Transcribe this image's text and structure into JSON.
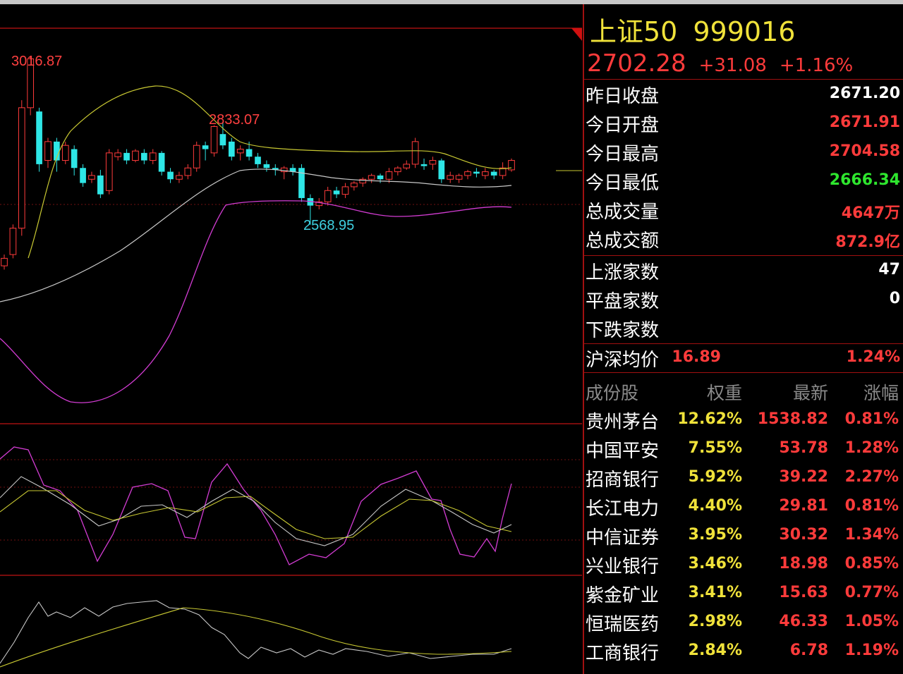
{
  "index": {
    "name": "上证50",
    "code": "999016",
    "price": "2702.28",
    "change": "+31.08",
    "change_pct": "+1.16%"
  },
  "stats": [
    {
      "label": "昨日收盘",
      "value": "2671.20",
      "color": "#ffffff"
    },
    {
      "label": "今日开盘",
      "value": "2671.91",
      "color": "#ff3b3b"
    },
    {
      "label": "今日最高",
      "value": "2704.58",
      "color": "#ff3b3b"
    },
    {
      "label": "今日最低",
      "value": "2666.34",
      "color": "#2ee62e"
    },
    {
      "label": "总成交量",
      "value": "4647万",
      "color": "#ff3b3b"
    },
    {
      "label": "总成交额",
      "value": "872.9亿",
      "color": "#ff3b3b"
    }
  ],
  "breadth": [
    {
      "label": "上涨家数",
      "value": "47",
      "color": "#ffffff"
    },
    {
      "label": "平盘家数",
      "value": "0",
      "color": "#ffffff"
    },
    {
      "label": "下跌家数",
      "value": "",
      "color": "#ff3b3b"
    }
  ],
  "avg_price": {
    "label": "沪深均价",
    "value": "16.89",
    "pct": "1.24%"
  },
  "constituents": {
    "headers": [
      "成份股",
      "权重",
      "最新",
      "涨幅"
    ],
    "rows": [
      {
        "name": "贵州茅台",
        "weight": "12.62%",
        "price": "1538.82",
        "pct": "0.81%"
      },
      {
        "name": "中国平安",
        "weight": "7.55%",
        "price": "53.78",
        "pct": "1.28%"
      },
      {
        "name": "招商银行",
        "weight": "5.92%",
        "price": "39.22",
        "pct": "2.27%"
      },
      {
        "name": "长江电力",
        "weight": "4.40%",
        "price": "29.81",
        "pct": "0.81%"
      },
      {
        "name": "中信证券",
        "weight": "3.95%",
        "price": "30.32",
        "pct": "1.34%"
      },
      {
        "name": "兴业银行",
        "weight": "3.46%",
        "price": "18.98",
        "pct": "0.85%"
      },
      {
        "name": "紫金矿业",
        "weight": "3.41%",
        "price": "15.63",
        "pct": "0.77%"
      },
      {
        "name": "恒瑞医药",
        "weight": "2.98%",
        "price": "46.33",
        "pct": "1.05%"
      },
      {
        "name": "工商银行",
        "weight": "2.84%",
        "price": "6.78",
        "pct": "1.19%"
      }
    ]
  },
  "chart_data": {
    "type": "candlestick",
    "annotations": {
      "high_label": "3016.87",
      "local_high_label": "2833.07",
      "low_label": "2568.95"
    },
    "y_range": [
      2050,
      3080
    ],
    "candles": [
      [
        2460,
        2480,
        2450,
        2490
      ],
      [
        2490,
        2560,
        2480,
        2570
      ],
      [
        2560,
        2880,
        2540,
        2900
      ],
      [
        2880,
        3010,
        2860,
        3016.87
      ],
      [
        2870,
        2730,
        2710,
        2880
      ],
      [
        2740,
        2790,
        2720,
        2800
      ],
      [
        2790,
        2740,
        2710,
        2800
      ],
      [
        2740,
        2780,
        2730,
        2790
      ],
      [
        2770,
        2720,
        2700,
        2780
      ],
      [
        2720,
        2680,
        2670,
        2730
      ],
      [
        2690,
        2700,
        2680,
        2710
      ],
      [
        2700,
        2650,
        2640,
        2715
      ],
      [
        2660,
        2760,
        2650,
        2770
      ],
      [
        2750,
        2760,
        2740,
        2770
      ],
      [
        2760,
        2740,
        2730,
        2770
      ],
      [
        2740,
        2765,
        2735,
        2770
      ],
      [
        2760,
        2740,
        2730,
        2770
      ],
      [
        2740,
        2760,
        2730,
        2770
      ],
      [
        2760,
        2710,
        2700,
        2765
      ],
      [
        2710,
        2690,
        2680,
        2720
      ],
      [
        2690,
        2700,
        2680,
        2710
      ],
      [
        2700,
        2720,
        2690,
        2730
      ],
      [
        2720,
        2780,
        2710,
        2790
      ],
      [
        2780,
        2770,
        2740,
        2790
      ],
      [
        2760,
        2830,
        2750,
        2833.07
      ],
      [
        2810,
        2780,
        2770,
        2840
      ],
      [
        2790,
        2750,
        2740,
        2800
      ],
      [
        2760,
        2770,
        2740,
        2780
      ],
      [
        2770,
        2750,
        2740,
        2790
      ],
      [
        2750,
        2730,
        2720,
        2760
      ],
      [
        2730,
        2720,
        2710,
        2740
      ],
      [
        2720,
        2715,
        2700,
        2730
      ],
      [
        2710,
        2720,
        2690,
        2725
      ],
      [
        2720,
        2710,
        2700,
        2730
      ],
      [
        2720,
        2640,
        2630,
        2730
      ],
      [
        2640,
        2620,
        2568.95,
        2650
      ],
      [
        2620,
        2630,
        2610,
        2640
      ],
      [
        2630,
        2660,
        2620,
        2670
      ],
      [
        2660,
        2650,
        2640,
        2670
      ],
      [
        2650,
        2670,
        2640,
        2680
      ],
      [
        2670,
        2680,
        2660,
        2685
      ],
      [
        2680,
        2690,
        2670,
        2695
      ],
      [
        2690,
        2700,
        2680,
        2705
      ],
      [
        2700,
        2690,
        2680,
        2705
      ],
      [
        2690,
        2710,
        2680,
        2720
      ],
      [
        2710,
        2720,
        2700,
        2725
      ],
      [
        2720,
        2730,
        2715,
        2740
      ],
      [
        2730,
        2790,
        2720,
        2800
      ],
      [
        2730,
        2725,
        2715,
        2745
      ],
      [
        2730,
        2740,
        2715,
        2750
      ],
      [
        2740,
        2690,
        2680,
        2745
      ],
      [
        2690,
        2700,
        2680,
        2710
      ],
      [
        2690,
        2700,
        2680,
        2705
      ],
      [
        2700,
        2710,
        2690,
        2715
      ],
      [
        2710,
        2705,
        2695,
        2720
      ],
      [
        2700,
        2710,
        2690,
        2720
      ],
      [
        2710,
        2700,
        2690,
        2715
      ],
      [
        2700,
        2720,
        2690,
        2735
      ],
      [
        2715,
        2740,
        2710,
        2745
      ]
    ]
  }
}
